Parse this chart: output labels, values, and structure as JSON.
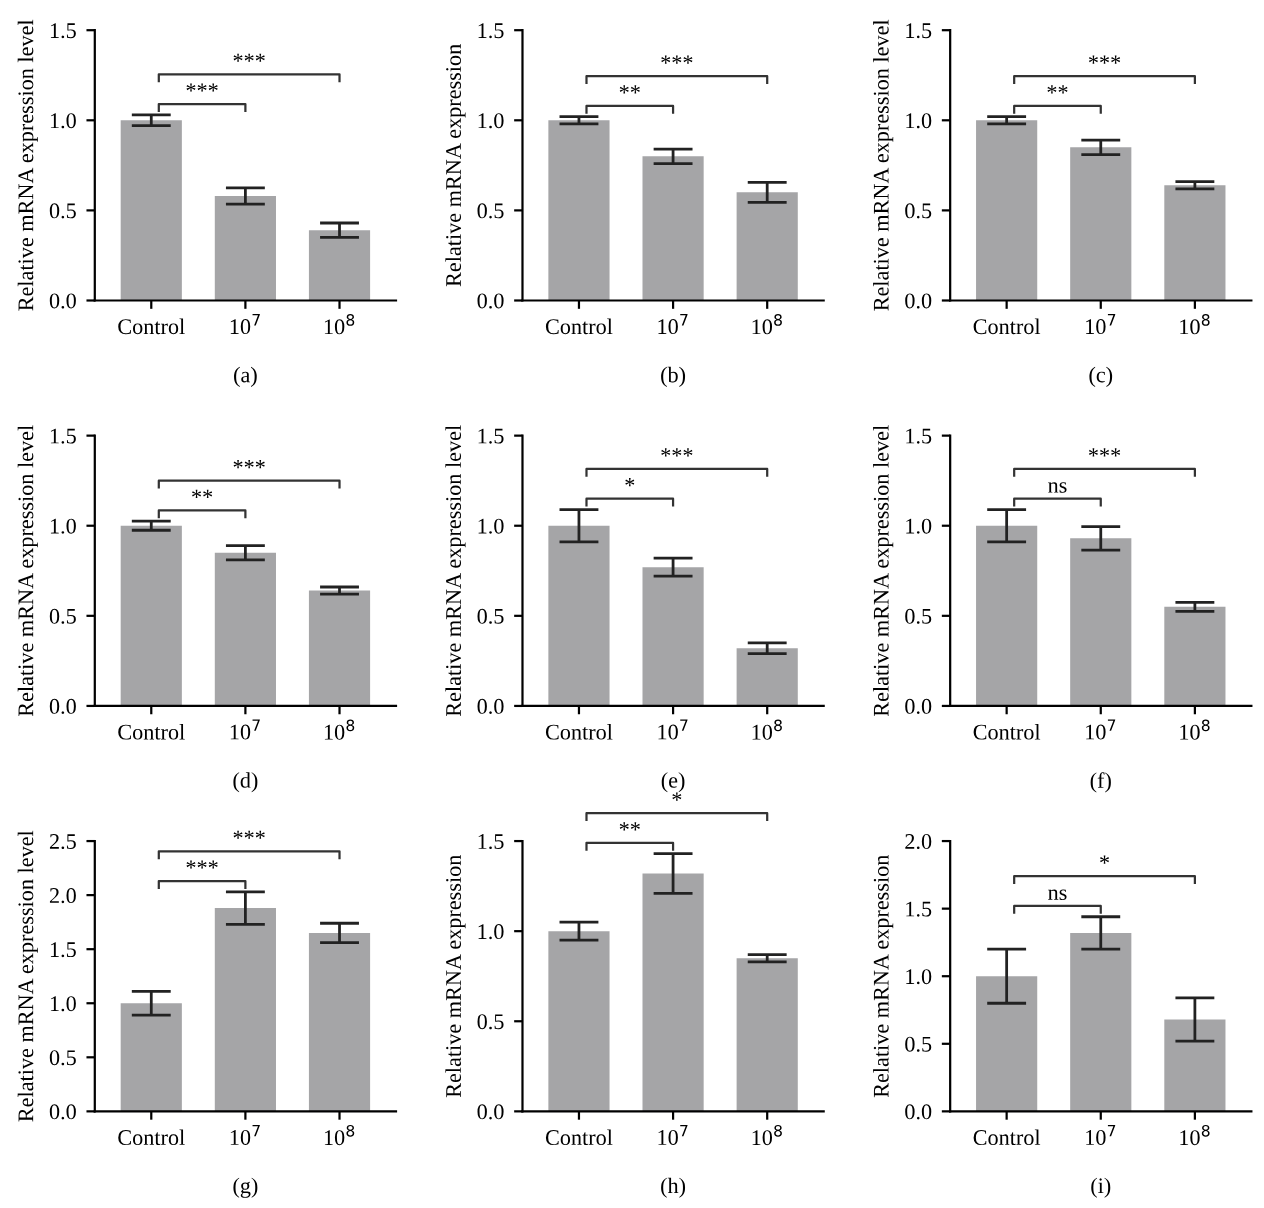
{
  "chart_data": [
    {
      "type": "bar",
      "xlabel": "(a)",
      "ylabel": "Relative mRNA expression level",
      "categories": [
        "Control",
        "10$^{7}$",
        "10$^{8}$"
      ],
      "color": "#a5a5a7",
      "values": [
        1.0,
        0.58,
        0.39
      ],
      "errors": [
        0.03,
        0.045,
        0.04
      ],
      "ylim": [
        0,
        1.5
      ],
      "yticks": [
        {
          "value": 0,
          "label": "0.0"
        },
        0.5,
        {
          "value": 1,
          "label": "1.0"
        },
        1.5
      ],
      "annotations": [
        "***",
        "***"
      ],
      "grid": false
    },
    {
      "type": "bar",
      "xlabel": "(b)",
      "ylabel": "Relative mRNA expression",
      "categories": [
        "Control",
        "10$^{7}$",
        "10$^{8}$"
      ],
      "color": "#a5a5a7",
      "values": [
        1.0,
        0.8,
        0.6
      ],
      "errors": [
        0.02,
        0.04,
        0.055
      ],
      "ylim": [
        0,
        1.5
      ],
      "yticks": [
        {
          "value": 0,
          "label": "0.0"
        },
        0.5,
        {
          "value": 1,
          "label": "1.0"
        },
        1.5
      ],
      "annotations": [
        "**",
        "***"
      ],
      "grid": false
    },
    {
      "type": "bar",
      "xlabel": "(c)",
      "ylabel": "Relative mRNA expression level",
      "categories": [
        "Control",
        "10$^{7}$",
        "10$^{8}$"
      ],
      "color": "#a5a5a7",
      "values": [
        1.0,
        0.85,
        0.64
      ],
      "errors": [
        0.02,
        0.04,
        0.02
      ],
      "ylim": [
        0,
        1.5
      ],
      "yticks": [
        {
          "value": 0,
          "label": "0.0"
        },
        0.5,
        {
          "value": 1,
          "label": "1.0"
        },
        1.5
      ],
      "annotations": [
        "**",
        "***"
      ],
      "grid": false
    },
    {
      "type": "bar",
      "xlabel": "(d)",
      "ylabel": "Relative mRNA expression level",
      "categories": [
        "Control",
        "10$^{7}$",
        "10$^{8}$"
      ],
      "color": "#a5a5a7",
      "values": [
        1.0,
        0.85,
        0.64
      ],
      "errors": [
        0.025,
        0.04,
        0.02
      ],
      "ylim": [
        0,
        1.5
      ],
      "yticks": [
        {
          "value": 0,
          "label": "0.0"
        },
        0.5,
        {
          "value": 1,
          "label": "1.0"
        },
        1.5
      ],
      "annotations": [
        "**",
        "***"
      ],
      "grid": false
    },
    {
      "type": "bar",
      "xlabel": "(e)",
      "ylabel": "Relative mRNA expression level",
      "categories": [
        "Control",
        "10$^{7}$",
        "10$^{8}$"
      ],
      "color": "#a5a5a7",
      "values": [
        1.0,
        0.77,
        0.32
      ],
      "errors": [
        0.09,
        0.05,
        0.03
      ],
      "ylim": [
        0,
        1.5
      ],
      "yticks": [
        {
          "value": 0,
          "label": "0.0"
        },
        0.5,
        {
          "value": 1,
          "label": "1.0"
        },
        1.5
      ],
      "annotations": [
        "*",
        "***"
      ],
      "grid": false
    },
    {
      "type": "bar",
      "xlabel": "(f)",
      "ylabel": "Relative mRNA expression level",
      "categories": [
        "Control",
        "10$^{7}$",
        "10$^{8}$"
      ],
      "color": "#a5a5a7",
      "values": [
        1.0,
        0.93,
        0.55
      ],
      "errors": [
        0.09,
        0.065,
        0.025
      ],
      "ylim": [
        0,
        1.5
      ],
      "yticks": [
        {
          "value": 0,
          "label": "0.0"
        },
        0.5,
        {
          "value": 1,
          "label": "1.0"
        },
        1.5
      ],
      "annotations": [
        "ns",
        "***"
      ],
      "grid": false
    },
    {
      "type": "bar",
      "xlabel": "(g)",
      "ylabel": "Relative mRNA expression level",
      "categories": [
        "Control",
        "10$^{7}$",
        "10$^{8}$"
      ],
      "color": "#a5a5a7",
      "values": [
        1.0,
        1.88,
        1.65
      ],
      "errors": [
        0.11,
        0.15,
        0.09
      ],
      "ylim": [
        0,
        2.5
      ],
      "yticks": [
        {
          "value": 0,
          "label": "0.0"
        },
        0.5,
        {
          "value": 1,
          "label": "1.0"
        },
        1.5,
        {
          "value": 2,
          "label": "2.0"
        },
        2.5
      ],
      "annotations": [
        "***",
        "***"
      ],
      "grid": false
    },
    {
      "type": "bar",
      "xlabel": "(h)",
      "ylabel": "Relative mRNA expression",
      "categories": [
        "Control",
        "10$^{7}$",
        "10$^{8}$"
      ],
      "color": "#a5a5a7",
      "values": [
        1.0,
        1.32,
        0.85
      ],
      "errors": [
        0.05,
        0.11,
        0.02
      ],
      "ylim": [
        0,
        1.5
      ],
      "yticks": [
        {
          "value": 0,
          "label": "0.0"
        },
        0.5,
        {
          "value": 1,
          "label": "1.0"
        },
        1.5
      ],
      "annotations": [
        "**",
        "*"
      ],
      "grid": false
    },
    {
      "type": "bar",
      "xlabel": "(i)",
      "ylabel": "Relative mRNA expression",
      "categories": [
        "Control",
        "10$^{7}$",
        "10$^{8}$"
      ],
      "color": "#a5a5a7",
      "values": [
        1.0,
        1.32,
        0.68
      ],
      "errors": [
        0.2,
        0.12,
        0.16
      ],
      "ylim": [
        0,
        2.0
      ],
      "yticks": [
        {
          "value": 0,
          "label": "0.0"
        },
        0.5,
        {
          "value": 1,
          "label": "1.0"
        },
        1.5,
        {
          "value": 2,
          "label": "2.0"
        }
      ],
      "annotations": [
        "ns",
        "*"
      ],
      "grid": false
    }
  ]
}
